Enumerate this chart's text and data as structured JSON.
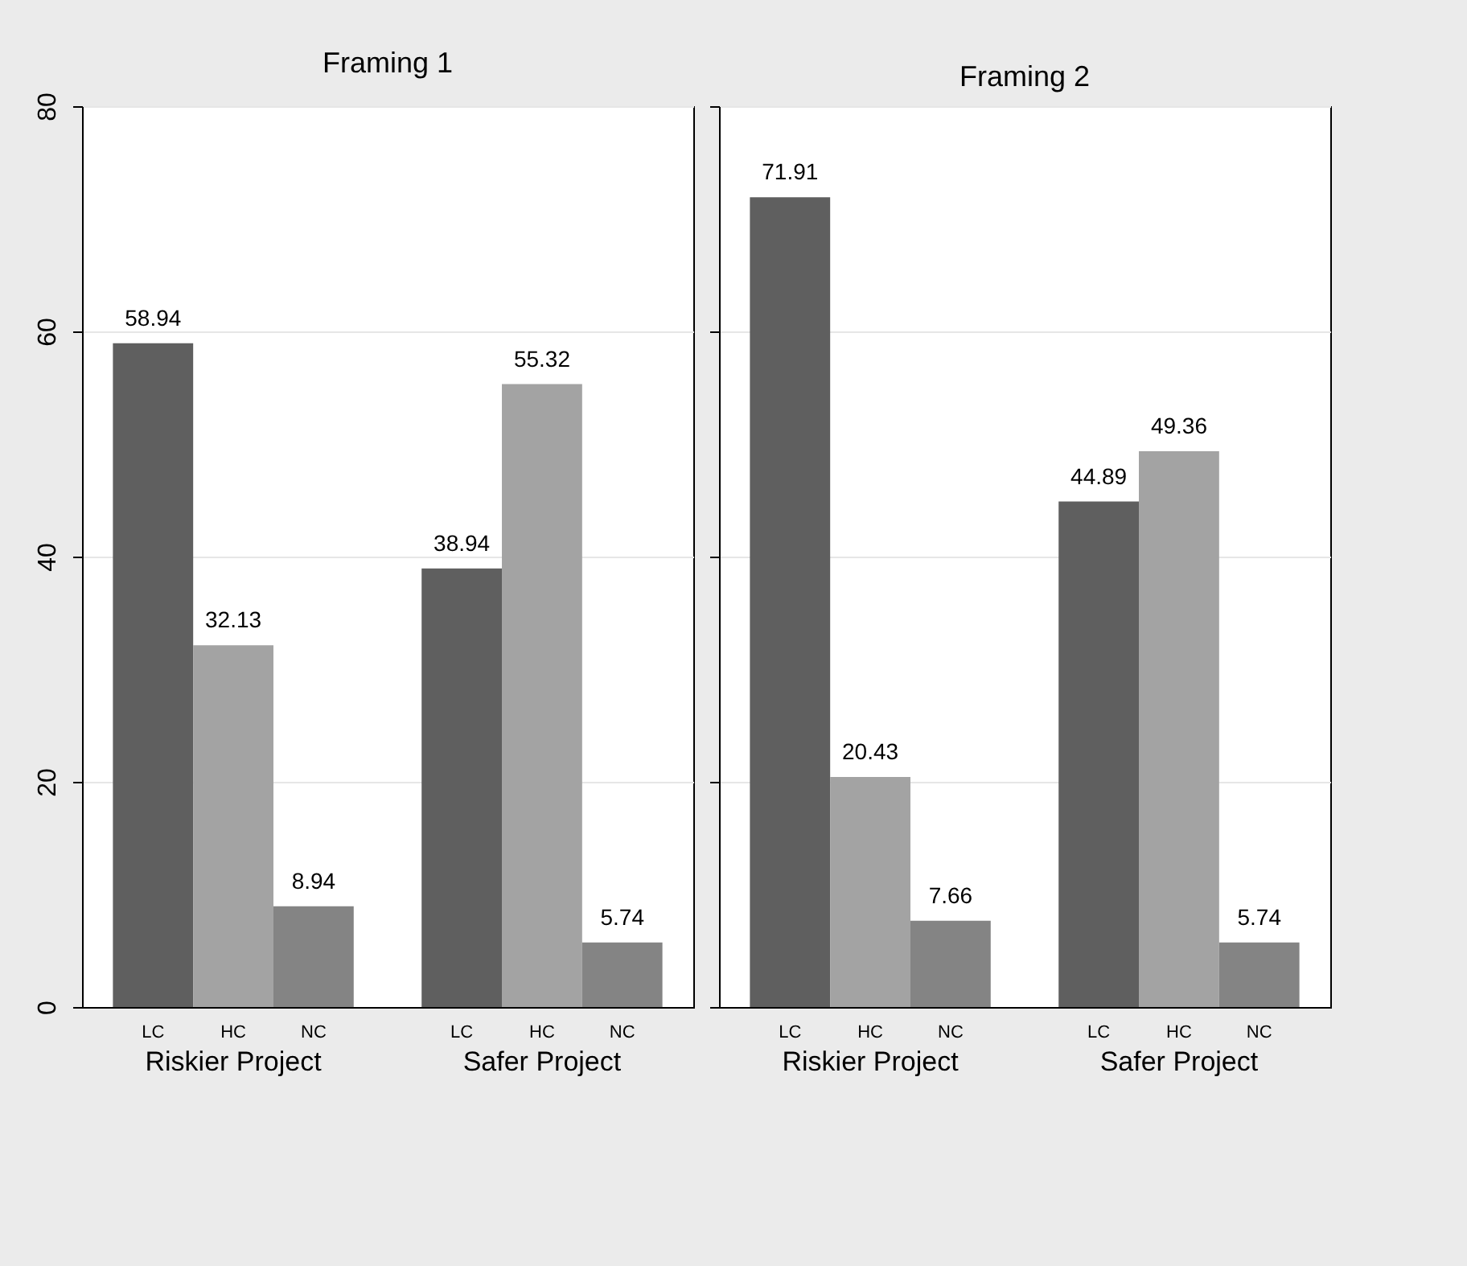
{
  "chart_data": [
    {
      "type": "bar",
      "title": "Framing 1",
      "categories": [
        "Riskier Project",
        "Safer Project"
      ],
      "series": [
        {
          "name": "LC",
          "color": "#5f5f5f",
          "values": [
            58.94,
            38.94
          ]
        },
        {
          "name": "HC",
          "color": "#a3a3a3",
          "values": [
            32.13,
            55.32
          ]
        },
        {
          "name": "NC",
          "color": "#848484",
          "values": [
            8.94,
            5.74
          ]
        }
      ],
      "ylim": [
        0,
        80
      ],
      "yticks": [
        0,
        20,
        40,
        60,
        80
      ],
      "grid": "y",
      "data_labels": true,
      "legend": false
    },
    {
      "type": "bar",
      "title": "Framing 2",
      "categories": [
        "Riskier Project",
        "Safer Project"
      ],
      "series": [
        {
          "name": "LC",
          "color": "#5f5f5f",
          "values": [
            71.91,
            44.89
          ]
        },
        {
          "name": "HC",
          "color": "#a3a3a3",
          "values": [
            20.43,
            49.36
          ]
        },
        {
          "name": "NC",
          "color": "#848484",
          "values": [
            7.66,
            5.74
          ]
        }
      ],
      "ylim": [
        0,
        80
      ],
      "yticks": [
        0,
        20,
        40,
        60,
        80
      ],
      "grid": "y",
      "data_labels": true,
      "legend": false,
      "tick_labels": "x"
    }
  ]
}
